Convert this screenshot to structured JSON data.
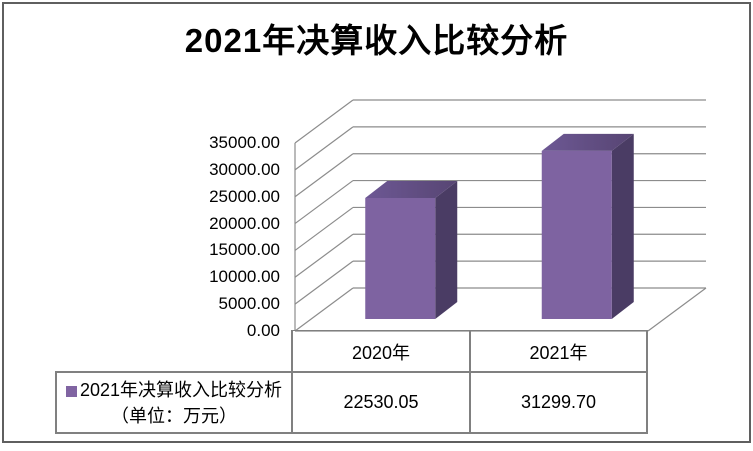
{
  "title": "2021年决算收入比较分析",
  "chart_data": {
    "type": "bar",
    "style": "3d-column",
    "title": "2021年决算收入比较分析",
    "categories": [
      "2020年",
      "2021年"
    ],
    "series": [
      {
        "name": "2021年决算收入比较分析（单位：万元）",
        "values": [
          22530.05,
          31299.7
        ]
      }
    ],
    "ylim": [
      0,
      35000
    ],
    "ytick_step": 5000,
    "ytick_labels": [
      "0.00",
      "5000.00",
      "10000.00",
      "15000.00",
      "20000.00",
      "25000.00",
      "30000.00",
      "35000.00"
    ],
    "grid": true,
    "legend_position": "bottom-left-table"
  },
  "table": {
    "categories": [
      "2020年",
      "2021年"
    ],
    "values": [
      "22530.05",
      "31299.70"
    ]
  },
  "legend": {
    "label": "2021年决算收入比较分析（单位：万元）"
  },
  "colors": {
    "accent": "#8064A2",
    "bar_front": "#7E63A1",
    "bar_top_light": "#6D5894",
    "bar_top_dark": "#574573",
    "bar_side": "#4A3C64",
    "grid": "#8C8C8C",
    "table_border": "#808080",
    "frame_border": "#5F5F5F",
    "text": "#000000"
  }
}
